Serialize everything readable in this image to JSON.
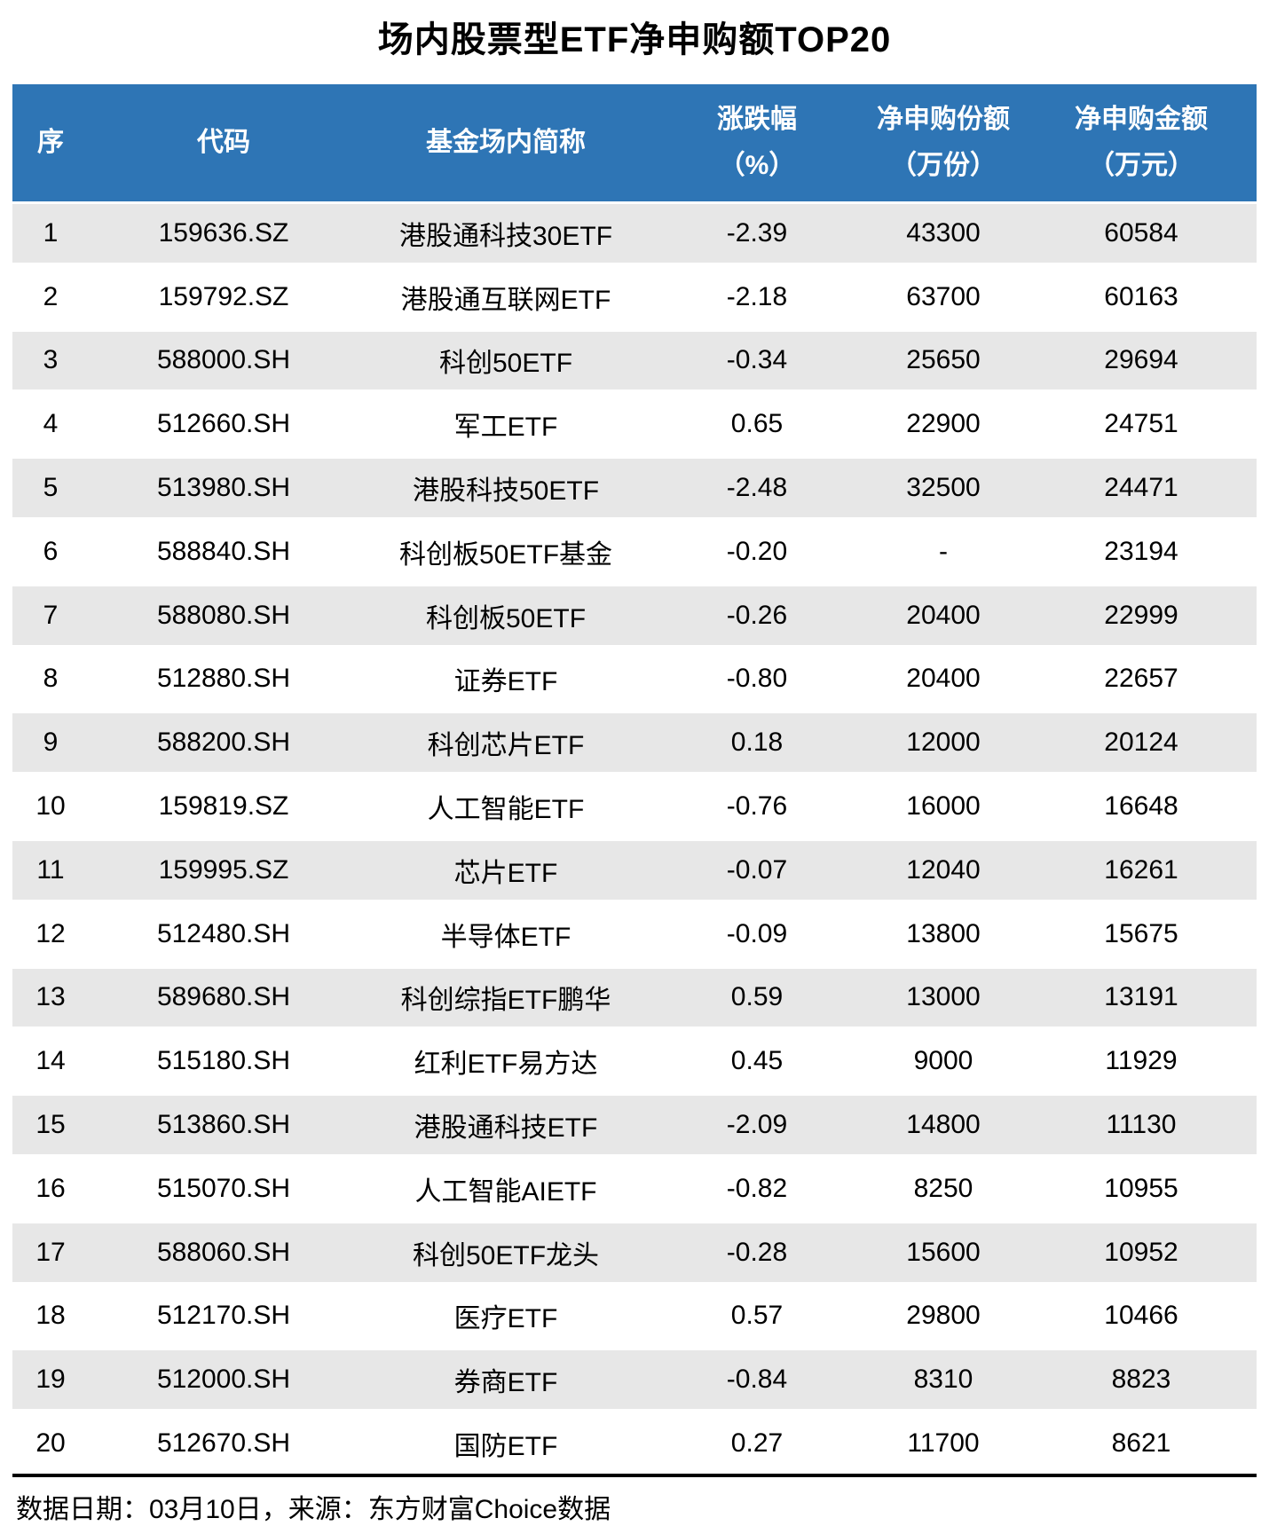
{
  "title": "场内股票型ETF净申购额TOP20",
  "header": {
    "col_rank": "序",
    "col_code": "代码",
    "col_name": "基金场内简称",
    "col_change_line1": "涨跌幅",
    "col_change_line2": "（%）",
    "col_shares_line1": "净申购份额",
    "col_shares_line2": "（万份）",
    "col_amount_line1": "净申购金额",
    "col_amount_line2": "（万元）"
  },
  "footer": {
    "note": "数据日期：03月10日，来源：东方财富Choice数据"
  },
  "colors": {
    "header_bg": "#2E75B5",
    "header_text": "#FFFFFF",
    "row_alt_bg": "#E7E7E7",
    "row_bg": "#FFFFFF",
    "body_text": "#000000",
    "divider": "#000000"
  },
  "chart_data": {
    "type": "table",
    "title": "场内股票型ETF净申购额TOP20",
    "columns": [
      "序",
      "代码",
      "基金场内简称",
      "涨跌幅（%）",
      "净申购份额（万份）",
      "净申购金额（万元）"
    ],
    "rows": [
      [
        "1",
        "159636.SZ",
        "港股通科技30ETF",
        "-2.39",
        "43300",
        "60584"
      ],
      [
        "2",
        "159792.SZ",
        "港股通互联网ETF",
        "-2.18",
        "63700",
        "60163"
      ],
      [
        "3",
        "588000.SH",
        "科创50ETF",
        "-0.34",
        "25650",
        "29694"
      ],
      [
        "4",
        "512660.SH",
        "军工ETF",
        "0.65",
        "22900",
        "24751"
      ],
      [
        "5",
        "513980.SH",
        "港股科技50ETF",
        "-2.48",
        "32500",
        "24471"
      ],
      [
        "6",
        "588840.SH",
        "科创板50ETF基金",
        "-0.20",
        "-",
        "23194"
      ],
      [
        "7",
        "588080.SH",
        "科创板50ETF",
        "-0.26",
        "20400",
        "22999"
      ],
      [
        "8",
        "512880.SH",
        "证券ETF",
        "-0.80",
        "20400",
        "22657"
      ],
      [
        "9",
        "588200.SH",
        "科创芯片ETF",
        "0.18",
        "12000",
        "20124"
      ],
      [
        "10",
        "159819.SZ",
        "人工智能ETF",
        "-0.76",
        "16000",
        "16648"
      ],
      [
        "11",
        "159995.SZ",
        "芯片ETF",
        "-0.07",
        "12040",
        "16261"
      ],
      [
        "12",
        "512480.SH",
        "半导体ETF",
        "-0.09",
        "13800",
        "15675"
      ],
      [
        "13",
        "589680.SH",
        "科创综指ETF鹏华",
        "0.59",
        "13000",
        "13191"
      ],
      [
        "14",
        "515180.SH",
        "红利ETF易方达",
        "0.45",
        "9000",
        "11929"
      ],
      [
        "15",
        "513860.SH",
        "港股通科技ETF",
        "-2.09",
        "14800",
        "11130"
      ],
      [
        "16",
        "515070.SH",
        "人工智能AIETF",
        "-0.82",
        "8250",
        "10955"
      ],
      [
        "17",
        "588060.SH",
        "科创50ETF龙头",
        "-0.28",
        "15600",
        "10952"
      ],
      [
        "18",
        "512170.SH",
        "医疗ETF",
        "0.57",
        "29800",
        "10466"
      ],
      [
        "19",
        "512000.SH",
        "券商ETF",
        "-0.84",
        "8310",
        "8823"
      ],
      [
        "20",
        "512670.SH",
        "国防ETF",
        "0.27",
        "11700",
        "8621"
      ]
    ]
  }
}
